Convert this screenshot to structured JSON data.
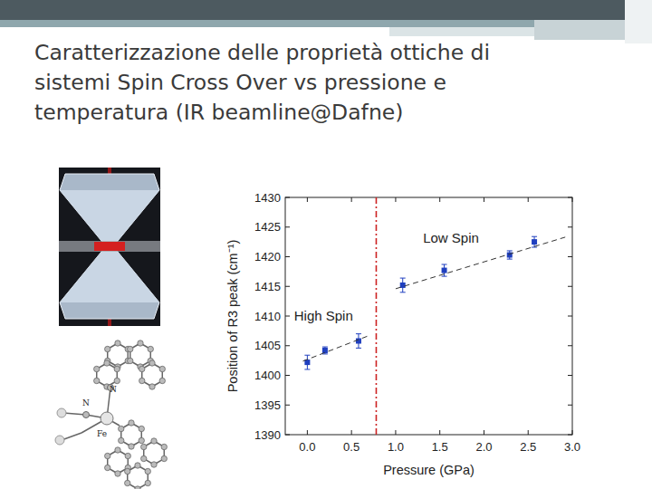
{
  "slide": {
    "title_lines": [
      "Caratterizzazione delle proprietà ottiche di",
      "sistemi Spin Cross Over vs pressione e",
      "temperatura (IR beamline@Dafne)"
    ]
  },
  "figure": {
    "atom_labels": [
      "N",
      "N",
      "Fe"
    ]
  },
  "chart_data": {
    "type": "scatter",
    "x_label": "Pressure (GPa)",
    "y_label": "Position of R3 peak (cm⁻¹)",
    "xlim": [
      -0.25,
      3.0
    ],
    "ylim": [
      1390,
      1430
    ],
    "xticks": [
      {
        "value": 0,
        "label": "0.0"
      },
      {
        "value": 0.5,
        "label": "0.5"
      },
      {
        "value": 1,
        "label": "1.0"
      },
      {
        "value": 1.5,
        "label": "1.5"
      },
      {
        "value": 2,
        "label": "2.0"
      },
      {
        "value": 2.5,
        "label": "2.5"
      },
      {
        "value": 3,
        "label": "3.0"
      }
    ],
    "yticks": [
      1390,
      1395,
      1400,
      1405,
      1410,
      1415,
      1420,
      1425,
      1430
    ],
    "grid": false,
    "series": [
      {
        "type": "scatter",
        "color": "#1f3fbf",
        "marker": "square",
        "x": [
          0.0,
          0.2,
          0.58,
          1.08,
          1.55,
          2.29,
          2.57
        ],
        "values": [
          1402.2,
          1404.2,
          1405.8,
          1415.2,
          1417.7,
          1420.3,
          1422.5
        ],
        "errors": [
          1.2,
          0.6,
          1.2,
          1.2,
          1.0,
          0.7,
          0.9
        ]
      },
      {
        "type": "line",
        "color": "#333333",
        "line_style": "dashed",
        "x": [
          -0.05,
          0.68
        ],
        "values": [
          1402.4,
          1406.6
        ]
      },
      {
        "type": "line",
        "color": "#333333",
        "line_style": "dashed",
        "x": [
          1.0,
          2.92
        ],
        "values": [
          1414.6,
          1423.3
        ]
      }
    ],
    "reference_lines": [
      {
        "x": 0.78,
        "color": "#cc2222",
        "line_style": "dashdot"
      }
    ],
    "annotations": [
      {
        "text": "Low Spin",
        "x": 1.31,
        "y": 1422.4
      },
      {
        "text": "High Spin",
        "x": -0.15,
        "y": 1409.2
      }
    ]
  }
}
